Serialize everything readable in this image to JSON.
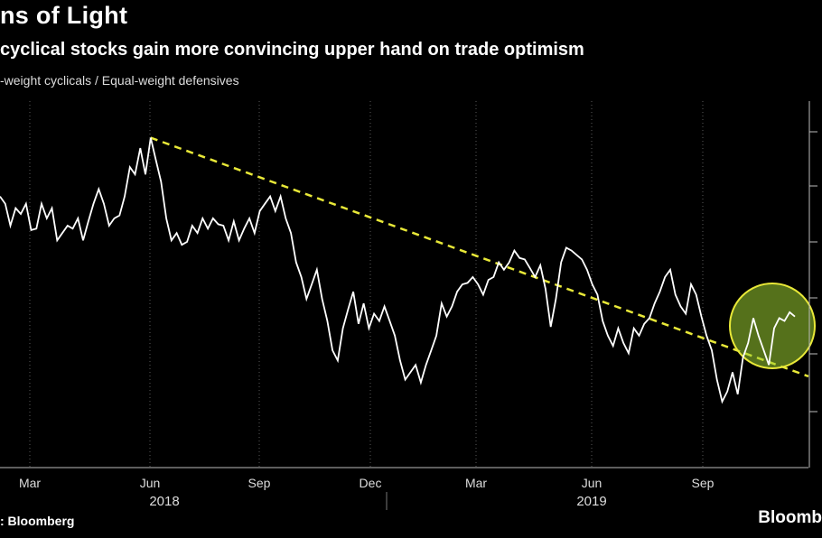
{
  "title": "ns of Light",
  "subtitle": "cyclical stocks gain more convincing upper hand on trade optimism",
  "source": ": Bloomberg",
  "brand": "Bloomb",
  "chart_data": {
    "type": "line",
    "ylabel": "-weight cyclicals / Equal-weight defensives",
    "x_ticks": [
      "Mar",
      "Jun",
      "Sep",
      "Dec",
      "Mar",
      "Jun",
      "Sep"
    ],
    "years": [
      "2018",
      "2019"
    ],
    "grid": {
      "vertical": true,
      "horizontal": false
    },
    "line_color": "#ffffff",
    "trend_color": "#e8e838",
    "highlight_color": "#9acd32",
    "series": [
      {
        "values": [
          0.905,
          0.9,
          0.885,
          0.897,
          0.893,
          0.9,
          0.882,
          0.883,
          0.9,
          0.89,
          0.897,
          0.875,
          0.88,
          0.885,
          0.883,
          0.89,
          0.875,
          0.888,
          0.9,
          0.91,
          0.9,
          0.885,
          0.89,
          0.892,
          0.905,
          0.925,
          0.92,
          0.938,
          0.92,
          0.945,
          0.93,
          0.915,
          0.89,
          0.875,
          0.88,
          0.872,
          0.874,
          0.885,
          0.88,
          0.89,
          0.883,
          0.89,
          0.886,
          0.885,
          0.875,
          0.888,
          0.875,
          0.883,
          0.89,
          0.88,
          0.895,
          0.9,
          0.905,
          0.895,
          0.905,
          0.89,
          0.88,
          0.86,
          0.85,
          0.835,
          0.845,
          0.855,
          0.835,
          0.82,
          0.8,
          0.793,
          0.815,
          0.828,
          0.84,
          0.818,
          0.832,
          0.815,
          0.825,
          0.82,
          0.83,
          0.82,
          0.81,
          0.793,
          0.78,
          0.785,
          0.79,
          0.778,
          0.79,
          0.8,
          0.81,
          0.832,
          0.823,
          0.83,
          0.84,
          0.845,
          0.846,
          0.85,
          0.845,
          0.838,
          0.848,
          0.85,
          0.86,
          0.855,
          0.86,
          0.868,
          0.863,
          0.862,
          0.856,
          0.85,
          0.858,
          0.842,
          0.816,
          0.835,
          0.86,
          0.87,
          0.868,
          0.865,
          0.862,
          0.855,
          0.845,
          0.838,
          0.82,
          0.81,
          0.803,
          0.815,
          0.805,
          0.798,
          0.815,
          0.81,
          0.818,
          0.822,
          0.832,
          0.84,
          0.85,
          0.855,
          0.838,
          0.83,
          0.825,
          0.845,
          0.838,
          0.823,
          0.81,
          0.8,
          0.78,
          0.765,
          0.772,
          0.785,
          0.77,
          0.795,
          0.805,
          0.822,
          0.81,
          0.8,
          0.79,
          0.815,
          0.822,
          0.82,
          0.826,
          0.823
        ]
      }
    ]
  }
}
